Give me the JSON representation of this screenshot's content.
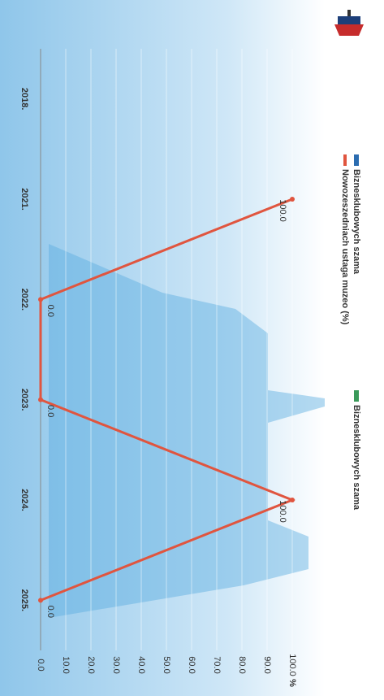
{
  "chart_data": {
    "type": "line",
    "y_label": "%",
    "categories": [
      "2018.",
      "2021.",
      "2022.",
      "2023.",
      "2024.",
      "2025."
    ],
    "series": [
      {
        "name": "Nowozeszedniach ustaga muzeo (%)",
        "color": "#e0553f",
        "values": [
          null,
          100,
          0,
          0,
          100,
          0
        ],
        "value_labels": [
          null,
          "100.0",
          "0.0",
          "0.0",
          "100.0",
          "0.0"
        ]
      }
    ],
    "legend_extra": [
      "Biznesklubowych szama",
      "Biznesklubowych szama"
    ],
    "ylim": [
      0,
      100
    ],
    "yticks": [
      {
        "value": 0,
        "label": "0.0"
      },
      {
        "value": 10,
        "label": "10.0"
      },
      {
        "value": 20,
        "label": "20.0"
      },
      {
        "value": 30,
        "label": "30.0"
      },
      {
        "value": 40,
        "label": "40.0"
      },
      {
        "value": 50,
        "label": "50.0"
      },
      {
        "value": 60,
        "label": "60.0"
      },
      {
        "value": 70,
        "label": "70.0"
      },
      {
        "value": 80,
        "label": "80.0"
      },
      {
        "value": 90,
        "label": "90.0"
      },
      {
        "value": 100,
        "label": "100.0"
      }
    ],
    "grid": true
  }
}
